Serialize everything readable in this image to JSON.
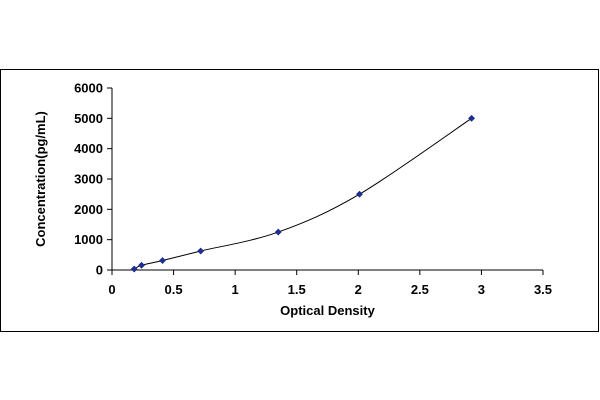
{
  "chart_data": {
    "type": "scatter",
    "title": "",
    "xlabel": "Optical Density",
    "ylabel": "Concentration(pg/mL)",
    "xlim": [
      0,
      3.5
    ],
    "ylim": [
      0,
      6000
    ],
    "x_ticks": [
      "0",
      "0.5",
      "1",
      "1.5",
      "2",
      "2.5",
      "3",
      "3.5"
    ],
    "y_ticks": [
      "0",
      "1000",
      "2000",
      "3000",
      "4000",
      "5000",
      "6000"
    ],
    "grid": false,
    "legend": "none",
    "marker_color": "#1f2f8f",
    "curve_color": "#000000",
    "fit_curve": true,
    "series": [
      {
        "x": [
          0.18,
          0.24,
          0.41,
          0.72,
          1.35,
          2.01,
          2.92
        ],
        "y": [
          31,
          156,
          312,
          625,
          1250,
          2500,
          5000
        ]
      }
    ]
  }
}
